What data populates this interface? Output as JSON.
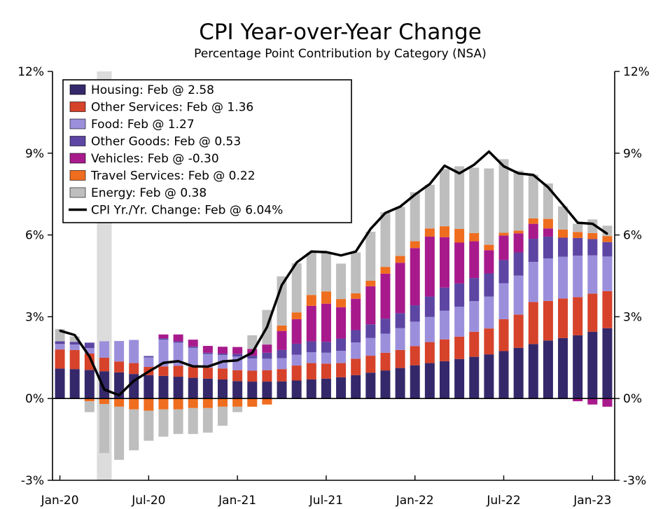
{
  "chart_data": {
    "type": "bar",
    "stacked": true,
    "title": "CPI Year-over-Year Change",
    "subtitle": "Percentage Point Contribution by Category  (NSA)",
    "ylim": [
      -3,
      12
    ],
    "yticks": [
      -3,
      0,
      3,
      6,
      9,
      12
    ],
    "ytick_labels": [
      "-3%",
      "0%",
      "3%",
      "6%",
      "9%",
      "12%"
    ],
    "xtick_labels": [
      "Jan-20",
      "Jul-20",
      "Jan-21",
      "Jul-21",
      "Jan-22",
      "Jul-22",
      "Jan-23"
    ],
    "xtick_positions": [
      0,
      6,
      12,
      18,
      24,
      30,
      36
    ],
    "recession_shade": {
      "start_index": 2.5,
      "end_index": 3.5
    },
    "categories": [
      "Jan-20",
      "Feb-20",
      "Mar-20",
      "Apr-20",
      "May-20",
      "Jun-20",
      "Jul-20",
      "Aug-20",
      "Sep-20",
      "Oct-20",
      "Nov-20",
      "Dec-20",
      "Jan-21",
      "Feb-21",
      "Mar-21",
      "Apr-21",
      "May-21",
      "Jun-21",
      "Jul-21",
      "Aug-21",
      "Sep-21",
      "Oct-21",
      "Nov-21",
      "Dec-21",
      "Jan-22",
      "Feb-22",
      "Mar-22",
      "Apr-22",
      "May-22",
      "Jun-22",
      "Jul-22",
      "Aug-22",
      "Sep-22",
      "Oct-22",
      "Nov-22",
      "Dec-22",
      "Jan-23",
      "Feb-23"
    ],
    "series": [
      {
        "name": "Housing",
        "color": "#35286a",
        "values": [
          1.1,
          1.08,
          1.05,
          1.0,
          0.96,
          0.9,
          0.86,
          0.83,
          0.8,
          0.76,
          0.73,
          0.7,
          0.64,
          0.62,
          0.62,
          0.63,
          0.66,
          0.7,
          0.73,
          0.78,
          0.86,
          0.95,
          1.03,
          1.12,
          1.22,
          1.3,
          1.37,
          1.45,
          1.53,
          1.62,
          1.74,
          1.86,
          2.0,
          2.13,
          2.22,
          2.32,
          2.45,
          2.58
        ]
      },
      {
        "name": "Other Services",
        "color": "#d6422a",
        "values": [
          0.7,
          0.7,
          0.6,
          0.5,
          0.4,
          0.4,
          0.3,
          0.35,
          0.4,
          0.4,
          0.4,
          0.4,
          0.4,
          0.4,
          0.42,
          0.45,
          0.55,
          0.6,
          0.55,
          0.52,
          0.6,
          0.62,
          0.65,
          0.66,
          0.7,
          0.77,
          0.8,
          0.82,
          0.92,
          0.95,
          1.17,
          1.22,
          1.54,
          1.45,
          1.45,
          1.4,
          1.4,
          1.36
        ]
      },
      {
        "name": "Food",
        "color": "#9b8fdc",
        "values": [
          0.2,
          0.2,
          0.2,
          0.6,
          0.75,
          0.85,
          0.35,
          0.98,
          0.85,
          0.7,
          0.5,
          0.5,
          0.5,
          0.45,
          0.42,
          0.4,
          0.4,
          0.4,
          0.4,
          0.45,
          0.6,
          0.65,
          0.7,
          0.8,
          0.9,
          0.92,
          1.05,
          1.1,
          1.12,
          1.17,
          1.32,
          1.43,
          1.47,
          1.56,
          1.53,
          1.52,
          1.4,
          1.27
        ]
      },
      {
        "name": "Other Goods",
        "color": "#5d46a3",
        "values": [
          0.1,
          0.1,
          0.2,
          0.0,
          0.0,
          0.0,
          0.05,
          0.05,
          0.05,
          0.05,
          0.05,
          0.05,
          0.1,
          0.1,
          0.22,
          0.3,
          0.4,
          0.4,
          0.4,
          0.45,
          0.45,
          0.5,
          0.55,
          0.55,
          0.6,
          0.75,
          0.85,
          0.85,
          0.85,
          0.85,
          0.85,
          0.85,
          0.85,
          0.8,
          0.7,
          0.65,
          0.6,
          0.53
        ]
      },
      {
        "name": "Vehicles",
        "color": "#a81a8c",
        "values": [
          0.0,
          0.0,
          0.0,
          0.0,
          0.0,
          0.0,
          0.0,
          0.14,
          0.25,
          0.25,
          0.25,
          0.25,
          0.25,
          0.25,
          0.3,
          0.7,
          0.9,
          1.3,
          1.4,
          1.15,
          1.15,
          1.4,
          1.65,
          1.85,
          2.1,
          2.2,
          1.85,
          1.5,
          1.35,
          0.85,
          0.9,
          0.7,
          0.55,
          0.3,
          0.0,
          -0.1,
          -0.22,
          -0.3
        ]
      },
      {
        "name": "Travel Services",
        "color": "#ef6d1e",
        "values": [
          0.0,
          0.0,
          -0.1,
          -0.2,
          -0.3,
          -0.4,
          -0.45,
          -0.4,
          -0.4,
          -0.35,
          -0.35,
          -0.3,
          -0.3,
          -0.3,
          -0.22,
          0.2,
          0.25,
          0.4,
          0.45,
          0.3,
          0.2,
          0.2,
          0.25,
          0.25,
          0.25,
          0.3,
          0.4,
          0.5,
          0.3,
          0.2,
          0.1,
          0.1,
          0.2,
          0.35,
          0.3,
          0.22,
          0.22,
          0.22
        ]
      },
      {
        "name": "Energy",
        "color": "#bebebe",
        "values": [
          0.45,
          0.2,
          -0.4,
          -1.8,
          -1.95,
          -1.5,
          -1.1,
          -1.0,
          -0.9,
          -0.95,
          -0.9,
          -0.7,
          -0.2,
          0.5,
          1.27,
          1.8,
          1.8,
          1.55,
          1.45,
          1.3,
          1.5,
          1.8,
          2.0,
          1.8,
          1.8,
          1.6,
          2.1,
          2.3,
          2.4,
          2.8,
          2.7,
          2.2,
          1.6,
          1.3,
          0.85,
          0.3,
          0.5,
          0.38
        ]
      }
    ],
    "line": {
      "name": "CPI Yr./Yr. Change",
      "color": "#000000",
      "values": [
        2.49,
        2.33,
        1.54,
        0.33,
        0.12,
        0.65,
        0.99,
        1.31,
        1.37,
        1.18,
        1.17,
        1.36,
        1.4,
        1.68,
        2.62,
        4.16,
        4.99,
        5.39,
        5.37,
        5.25,
        5.39,
        6.22,
        6.81,
        7.04,
        7.48,
        7.87,
        8.54,
        8.26,
        8.58,
        9.06,
        8.52,
        8.26,
        8.2,
        7.75,
        7.11,
        6.45,
        6.41,
        6.04
      ]
    },
    "legend": [
      {
        "label": "Housing: Feb @ 2.58",
        "color": "#35286a",
        "kind": "box"
      },
      {
        "label": "Other Services: Feb @ 1.36",
        "color": "#d6422a",
        "kind": "box"
      },
      {
        "label": "Food: Feb @ 1.27",
        "color": "#9b8fdc",
        "kind": "box"
      },
      {
        "label": "Other Goods: Feb @ 0.53",
        "color": "#5d46a3",
        "kind": "box"
      },
      {
        "label": "Vehicles: Feb @ -0.30",
        "color": "#a81a8c",
        "kind": "box"
      },
      {
        "label": "Travel Services: Feb @ 0.22",
        "color": "#ef6d1e",
        "kind": "box"
      },
      {
        "label": "Energy: Feb @ 0.38",
        "color": "#bebebe",
        "kind": "box"
      },
      {
        "label": "CPI Yr./Yr. Change: Feb @ 6.04%",
        "color": "#000000",
        "kind": "line"
      }
    ],
    "legend_position": "top-left"
  }
}
